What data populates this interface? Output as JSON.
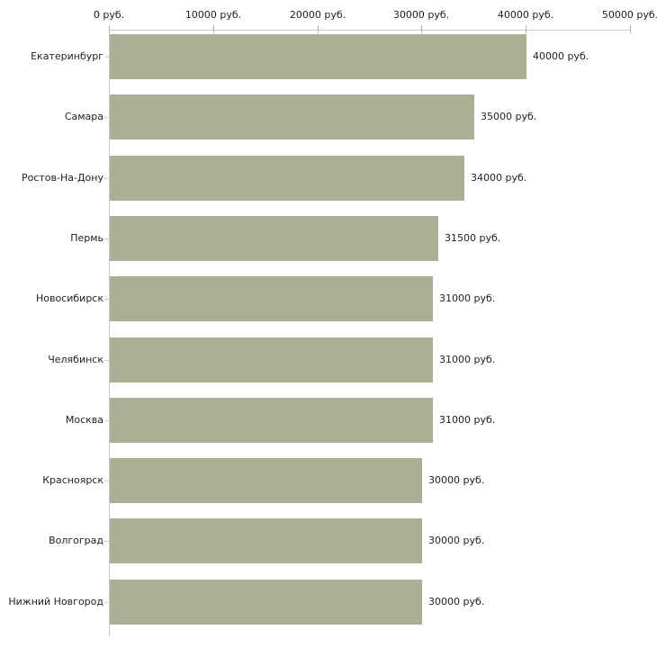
{
  "chart_data": {
    "type": "bar",
    "orientation": "horizontal",
    "title": "",
    "unit": "руб.",
    "grid": false,
    "legend": false,
    "categories": [
      "Екатеринбург",
      "Самара",
      "Ростов-На-Дону",
      "Пермь",
      "Новосибирск",
      "Челябинск",
      "Москва",
      "Красноярск",
      "Волгоград",
      "Нижний Новгород"
    ],
    "values": [
      40000,
      35000,
      34000,
      31500,
      31000,
      31000,
      31000,
      30000,
      30000,
      30000
    ],
    "value_labels": [
      "40000 руб.",
      "35000 руб.",
      "34000 руб.",
      "31500 руб.",
      "31000 руб.",
      "31000 руб.",
      "31000 руб.",
      "30000 руб.",
      "30000 руб.",
      "30000 руб."
    ],
    "x_axis": {
      "position": "top",
      "min": 0,
      "max": 50000,
      "tick_values": [
        0,
        10000,
        20000,
        30000,
        40000,
        50000
      ],
      "tick_labels": [
        "0 руб.",
        "10000 руб.",
        "20000 руб.",
        "30000 руб.",
        "40000 руб.",
        "50000 руб."
      ]
    },
    "colors": {
      "bar": "#aaaf95",
      "axis_line": "#c9c9c9",
      "x_tick": "#b4b68f",
      "category_tick": "#d3d5bd",
      "text": "#1e1e1e",
      "background": "#ffffff"
    }
  }
}
